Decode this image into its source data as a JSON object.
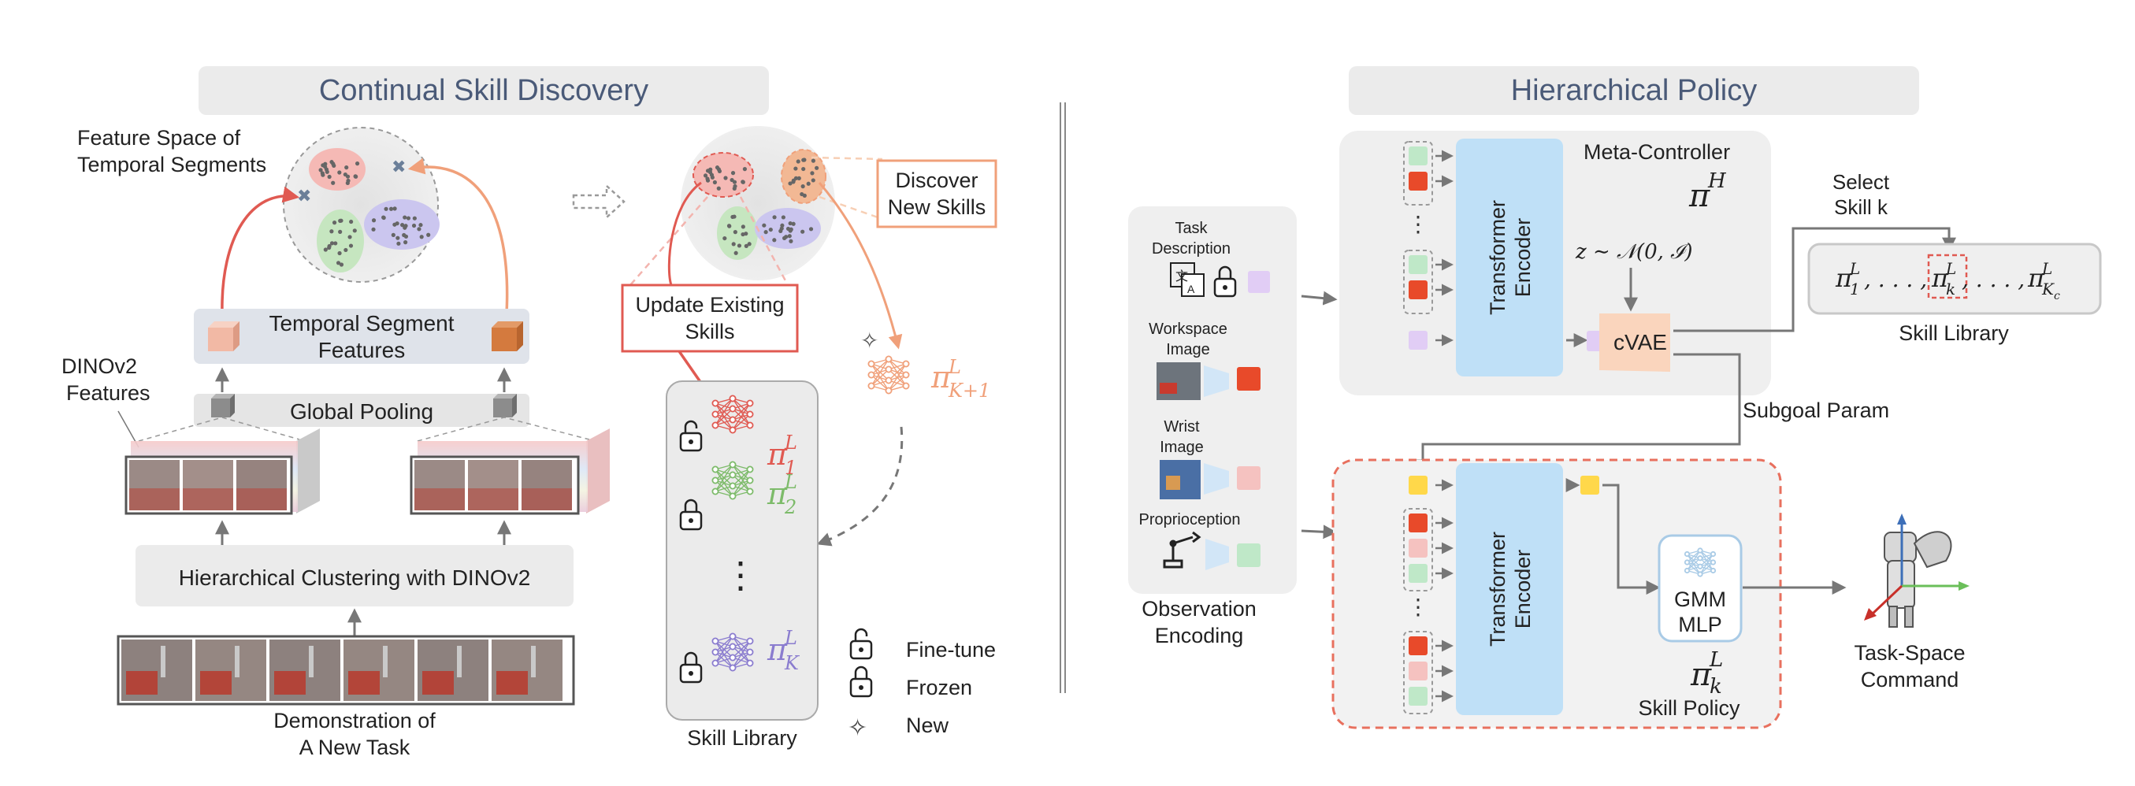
{
  "left_panel": {
    "header": "Continual Skill Discovery",
    "feature_space_label": [
      "Feature Space of",
      "Temporal Segments"
    ],
    "temporal_segment_features": [
      "Temporal Segment",
      "Features"
    ],
    "dinov2_features": [
      "DINOv2",
      "Features"
    ],
    "global_pooling": "Global Pooling",
    "hierarchical_clustering": "Hierarchical Clustering with DINOv2",
    "demonstration": [
      "Demonstration of",
      "A New Task"
    ],
    "discover_new_skills": [
      "Discover",
      "New Skills"
    ],
    "update_existing_skills": [
      "Update Existing",
      "Skills"
    ],
    "skill_library": "Skill Library",
    "policies": {
      "new": {
        "base": "π",
        "sup": "L",
        "sub": "K+1"
      },
      "p1": {
        "base": "π",
        "sup": "L",
        "sub": "1"
      },
      "p2": {
        "base": "π",
        "sup": "L",
        "sub": "2"
      },
      "pk": {
        "base": "π",
        "sup": "L",
        "sub": "K"
      },
      "dots": "⋮"
    },
    "legend": {
      "finetune": "Fine-tune",
      "frozen": "Frozen",
      "new": "New"
    }
  },
  "right_panel": {
    "header": "Hierarchical Policy",
    "meta_controller": "Meta-Controller",
    "pi_h": {
      "base": "π",
      "sup": "H"
    },
    "transformer_encoder": [
      "Transformer",
      "Encoder"
    ],
    "z_dist": "z ∼ 𝒩(0, ℐ)",
    "cvae": "cVAE",
    "select_skill": [
      "Select",
      "Skill k"
    ],
    "skill_library_formula": "π₁ᴸ, . . . , πₖᴸ, . . . , π_Kc ᴸ",
    "skill_library_parts": {
      "p1": "1",
      "pk": "k",
      "pkc": "K",
      "pkc_sub2": "c",
      "sup": "L",
      "dots": ", . . . ,"
    },
    "skill_library": "Skill Library",
    "subgoal_param": "Subgoal Param",
    "observation": {
      "task_description": [
        "Task",
        "Description"
      ],
      "workspace_image": [
        "Workspace",
        "Image"
      ],
      "wrist_image": [
        "Wrist",
        "Image"
      ],
      "proprioception": "Proprioception",
      "label": [
        "Observation",
        "Encoding"
      ]
    },
    "gmm_mlp": [
      "GMM",
      "MLP"
    ],
    "pi_k": {
      "base": "π",
      "sup": "L",
      "sub": "k"
    },
    "skill_policy": "Skill Policy",
    "task_space_command": [
      "Task-Space",
      "Command"
    ],
    "ellipsis": "⋮"
  },
  "colors": {
    "header_bg": "#ebebeb",
    "header_text": "#4a5a78",
    "red": "#e05a52",
    "orange": "#f0a07a",
    "green": "#7dbb6a",
    "purple": "#8a7ccf",
    "transformer_blue": "#bfe0f7",
    "cvae_peach": "#fad5bd",
    "token_green": "#bfe8c8",
    "token_red": "#e84a2a",
    "token_pink": "#f5c2c0",
    "token_purple": "#e1cdf5",
    "token_yellow": "#ffd84a",
    "dashed_red": "#e8705e"
  }
}
